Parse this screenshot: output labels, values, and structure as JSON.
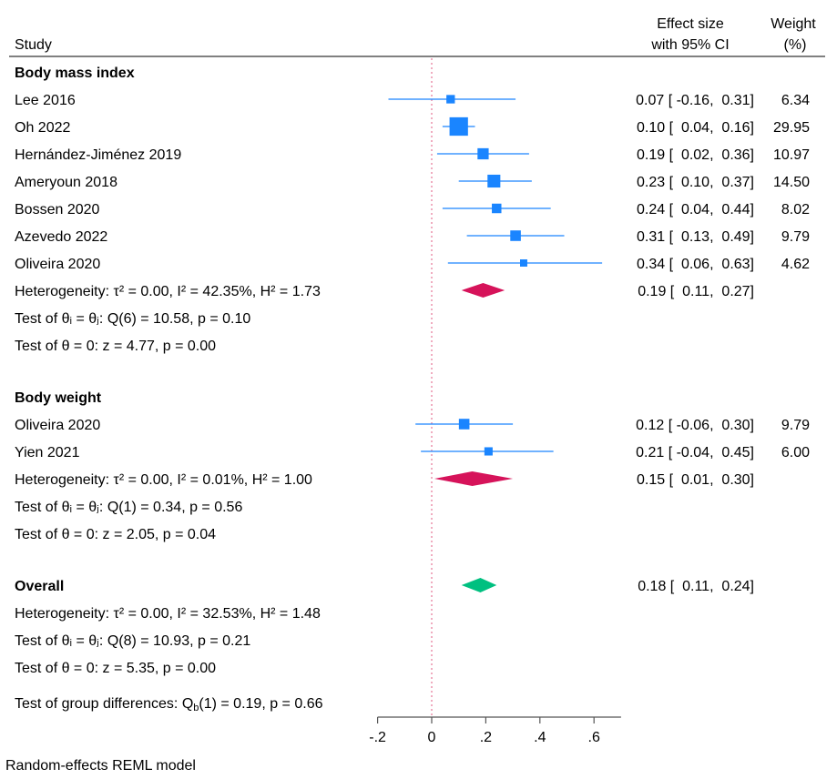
{
  "chart_data": {
    "type": "forest",
    "header": {
      "study": "Study",
      "effect_line1": "Effect size",
      "effect_line2": "with 95% CI",
      "weight_line1": "Weight",
      "weight_line2": "(%)"
    },
    "xlim": [
      -0.2,
      0.7
    ],
    "xticks": [
      -0.2,
      0,
      0.2,
      0.4,
      0.6
    ],
    "xtick_labels": [
      "-.2",
      "0",
      ".2",
      ".4",
      ".6"
    ],
    "reference_line": 0,
    "colors": {
      "study": "#1a85ff",
      "subgroup_diamond": "#d6135a",
      "overall_diamond": "#00c080",
      "reference_line": "#e05a80"
    },
    "groups": [
      {
        "name": "Body mass index",
        "studies": [
          {
            "study": "Lee 2016",
            "es": 0.07,
            "lo": -0.16,
            "hi": 0.31,
            "weight": 6.34,
            "ci_text": "0.07 [ -0.16,  0.31]",
            "weight_text": "6.34"
          },
          {
            "study": "Oh 2022",
            "es": 0.1,
            "lo": 0.04,
            "hi": 0.16,
            "weight": 29.95,
            "ci_text": "0.10 [  0.04,  0.16]",
            "weight_text": "29.95"
          },
          {
            "study": "Hernández-Jiménez 2019",
            "es": 0.19,
            "lo": 0.02,
            "hi": 0.36,
            "weight": 10.97,
            "ci_text": "0.19 [  0.02,  0.36]",
            "weight_text": "10.97"
          },
          {
            "study": "Ameryoun 2018",
            "es": 0.23,
            "lo": 0.1,
            "hi": 0.37,
            "weight": 14.5,
            "ci_text": "0.23 [  0.10,  0.37]",
            "weight_text": "14.50"
          },
          {
            "study": "Bossen 2020",
            "es": 0.24,
            "lo": 0.04,
            "hi": 0.44,
            "weight": 8.02,
            "ci_text": "0.24 [  0.04,  0.44]",
            "weight_text": "8.02"
          },
          {
            "study": "Azevedo 2022",
            "es": 0.31,
            "lo": 0.13,
            "hi": 0.49,
            "weight": 9.79,
            "ci_text": "0.31 [  0.13,  0.49]",
            "weight_text": "9.79"
          },
          {
            "study": "Oliveira 2020",
            "es": 0.34,
            "lo": 0.06,
            "hi": 0.63,
            "weight": 4.62,
            "ci_text": "0.34 [  0.06,  0.63]",
            "weight_text": "4.62"
          }
        ],
        "pooled": {
          "es": 0.19,
          "lo": 0.11,
          "hi": 0.27,
          "ci_text": "0.19 [  0.11,  0.27]"
        },
        "heterogeneity": "Heterogeneity: τ² = 0.00, I² = 42.35%, H² = 1.73",
        "test_homogeneity": "Test of θᵢ = θⱼ: Q(6) = 10.58, p = 0.10",
        "test_zero": "Test of θ = 0: z = 4.77, p = 0.00"
      },
      {
        "name": "Body weight",
        "studies": [
          {
            "study": "Oliveira 2020",
            "es": 0.12,
            "lo": -0.06,
            "hi": 0.3,
            "weight": 9.79,
            "ci_text": "0.12 [ -0.06,  0.30]",
            "weight_text": "9.79"
          },
          {
            "study": "Yien 2021",
            "es": 0.21,
            "lo": -0.04,
            "hi": 0.45,
            "weight": 6.0,
            "ci_text": "0.21 [ -0.04,  0.45]",
            "weight_text": "6.00"
          }
        ],
        "pooled": {
          "es": 0.15,
          "lo": 0.01,
          "hi": 0.3,
          "ci_text": "0.15 [  0.01,  0.30]"
        },
        "heterogeneity": "Heterogeneity: τ² = 0.00, I² = 0.01%, H² = 1.00",
        "test_homogeneity": "Test of θᵢ = θⱼ: Q(1) = 0.34, p = 0.56",
        "test_zero": "Test of θ = 0: z = 2.05, p = 0.04"
      }
    ],
    "overall": {
      "name": "Overall",
      "es": 0.18,
      "lo": 0.11,
      "hi": 0.24,
      "ci_text": "0.18 [  0.11,  0.24]",
      "heterogeneity": "Heterogeneity: τ² = 0.00, I² = 32.53%, H² = 1.48",
      "test_homogeneity": "Test of θᵢ = θⱼ: Q(8) = 10.93, p = 0.21",
      "test_zero": "Test of θ = 0: z = 5.35, p = 0.00"
    },
    "group_difference": {
      "prefix": "Test of group differences: Q",
      "sub": "b",
      "suffix": "(1) = 0.19, p = 0.66"
    },
    "footnote": "Random-effects REML model"
  }
}
